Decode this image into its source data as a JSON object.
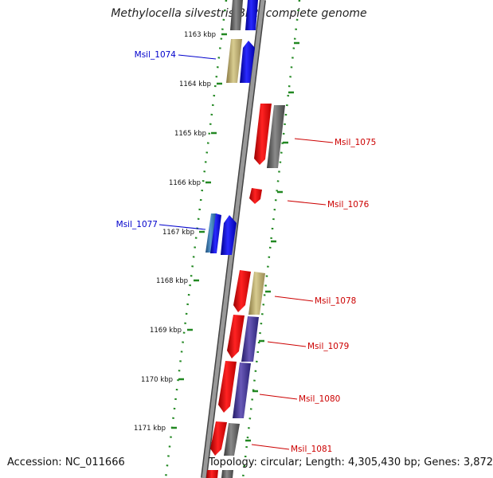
{
  "title": "Methylocella silvestris BL2, complete genome",
  "footer": {
    "accession": "Accession: NC_011666",
    "topology": "Topology: circular; Length: 4,305,430 bp; Genes: 3,872"
  },
  "ticks": [
    {
      "label": "1163 kbp",
      "kbp": 1163
    },
    {
      "label": "1164 kbp",
      "kbp": 1164
    },
    {
      "label": "1165 kbp",
      "kbp": 1165
    },
    {
      "label": "1166 kbp",
      "kbp": 1166
    },
    {
      "label": "1167 kbp",
      "kbp": 1167
    },
    {
      "label": "1168 kbp",
      "kbp": 1168
    },
    {
      "label": "1169 kbp",
      "kbp": 1169
    },
    {
      "label": "1170 kbp",
      "kbp": 1170
    },
    {
      "label": "1171 kbp",
      "kbp": 1171
    }
  ],
  "genes": [
    {
      "name": "Msil_1074",
      "strand": "plus",
      "color": "#0000cc"
    },
    {
      "name": "Msil_1075",
      "strand": "minus",
      "color": "#cc0000"
    },
    {
      "name": "Msil_1076",
      "strand": "minus",
      "color": "#cc0000"
    },
    {
      "name": "Msil_1077",
      "strand": "plus",
      "color": "#0000cc"
    },
    {
      "name": "Msil_1078",
      "strand": "minus",
      "color": "#cc0000"
    },
    {
      "name": "Msil_1079",
      "strand": "minus",
      "color": "#cc0000"
    },
    {
      "name": "Msil_1080",
      "strand": "minus",
      "color": "#cc0000"
    },
    {
      "name": "Msil_1081",
      "strand": "minus",
      "color": "#cc0000"
    }
  ],
  "colors": {
    "plus_strand": "#0000ff",
    "minus_strand": "#ff0000",
    "backbone": "#808080",
    "tick": "#228822",
    "cog_olive": "#c8b878",
    "cog_gray": "#707070",
    "cog_purple": "#4a3a9a",
    "cog_teal": "#3a7aaa"
  }
}
